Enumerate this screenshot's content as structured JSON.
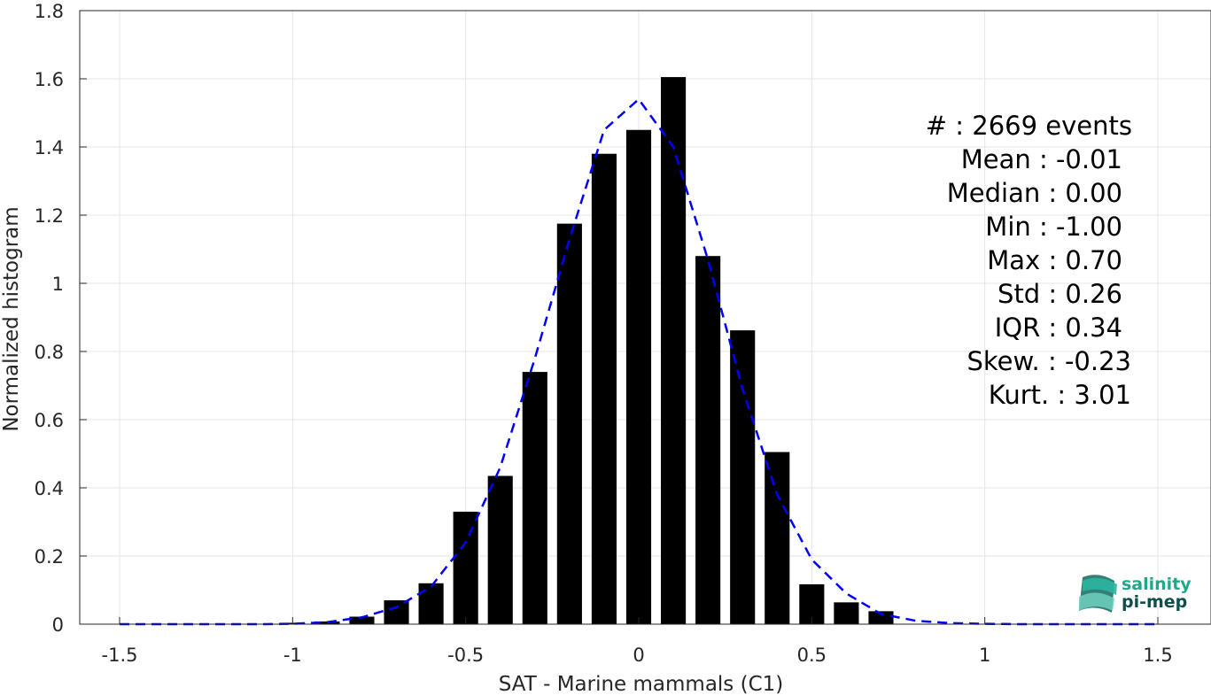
{
  "chart_data": {
    "type": "bar",
    "xlabel": "SAT - Marine mammals (C1)",
    "ylabel": "Normalized histogram",
    "xlim": [
      -1.5,
      1.5
    ],
    "ylim": [
      0,
      1.8
    ],
    "xticks": [
      "-1.5",
      "-1",
      "-0.5",
      "0",
      "0.5",
      "1",
      "1.5"
    ],
    "yticks": [
      "0",
      "0.2",
      "0.4",
      "0.6",
      "0.8",
      "1",
      "1.2",
      "1.4",
      "1.6",
      "1.8"
    ],
    "grid": true,
    "bar_color": "#000000",
    "bins": {
      "centers": [
        -1.0,
        -0.9,
        -0.8,
        -0.7,
        -0.6,
        -0.5,
        -0.4,
        -0.3,
        -0.2,
        -0.1,
        0.0,
        0.1,
        0.2,
        0.3,
        0.4,
        0.5,
        0.6,
        0.7
      ],
      "values": [
        0.004,
        0.008,
        0.022,
        0.07,
        0.12,
        0.33,
        0.435,
        0.74,
        1.175,
        1.38,
        1.45,
        1.605,
        1.08,
        0.862,
        0.505,
        0.117,
        0.064,
        0.038
      ]
    },
    "fit_curve": {
      "style": "dashed",
      "color": "#0000ff",
      "x": [
        -1.5,
        -1.4,
        -1.3,
        -1.2,
        -1.1,
        -1.0,
        -0.9,
        -0.8,
        -0.7,
        -0.6,
        -0.5,
        -0.4,
        -0.3,
        -0.2,
        -0.1,
        0.0,
        0.1,
        0.2,
        0.3,
        0.4,
        0.5,
        0.6,
        0.7,
        0.8,
        0.9,
        1.0,
        1.1,
        1.2,
        1.3,
        1.4,
        1.5
      ],
      "y": [
        0.0,
        0.0,
        0.0,
        0.0,
        0.0,
        0.001,
        0.006,
        0.02,
        0.05,
        0.11,
        0.24,
        0.46,
        0.78,
        1.13,
        1.45,
        1.54,
        1.4,
        1.07,
        0.69,
        0.38,
        0.19,
        0.09,
        0.03,
        0.01,
        0.003,
        0.001,
        0.0,
        0.0,
        0.0,
        0.0,
        0.0
      ]
    },
    "stats": [
      "#  : 2669 events",
      "Mean : -0.01",
      "Median : 0.00",
      "Min : -1.00",
      "Max : 0.70",
      "Std : 0.26",
      "IQR : 0.34",
      "Skew. : -0.23",
      "Kurt. : 3.01"
    ]
  },
  "logo": {
    "line1": "salinity",
    "line2": "pi-mep",
    "color1": "#1fa88a",
    "color2": "#0f4f4a"
  }
}
